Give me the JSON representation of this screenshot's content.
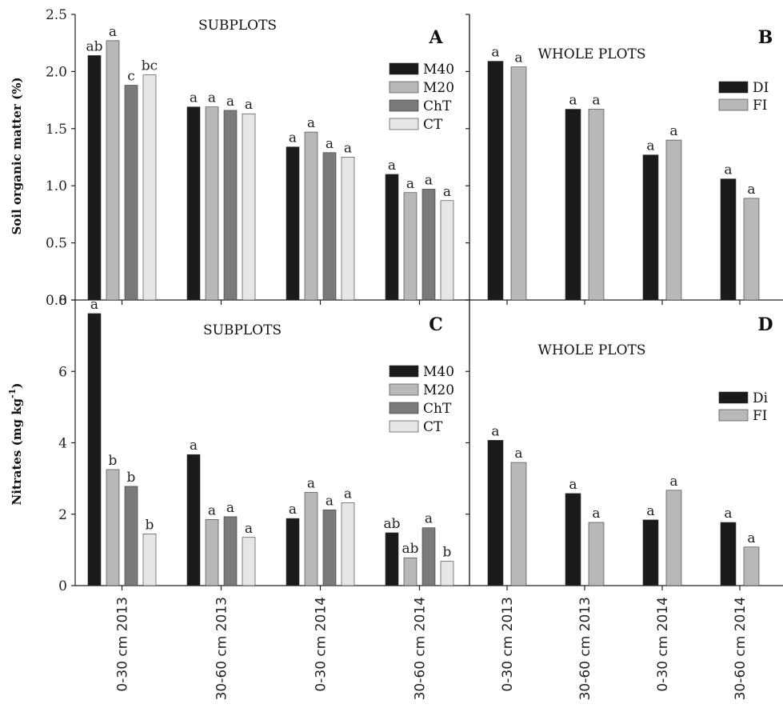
{
  "chart_data": [
    {
      "id": "A",
      "type": "bar",
      "panel_label": "A",
      "title": "SUBPLOTS",
      "ylabel": "Soil organic matter (%)",
      "ylim": [
        0,
        2.5
      ],
      "yticks": [
        "0.0",
        "0.5",
        "1.0",
        "1.5",
        "2.0",
        "2.5"
      ],
      "categories": [
        "0-30 cm 2013",
        "30-60  cm 2013",
        "0-30 cm 2014",
        "30-60 cm 2014"
      ],
      "legend_position": "right",
      "series": [
        {
          "name": "M40",
          "color": "#1a1a1a",
          "values": [
            2.14,
            1.69,
            1.34,
            1.1
          ],
          "labels": [
            "ab",
            "a",
            "a",
            "a"
          ]
        },
        {
          "name": "M20",
          "color": "#b8b8b8",
          "values": [
            2.27,
            1.69,
            1.47,
            0.94
          ],
          "labels": [
            "a",
            "a",
            "a",
            "a"
          ]
        },
        {
          "name": "ChT",
          "color": "#7a7a7a",
          "values": [
            1.88,
            1.66,
            1.29,
            0.97
          ],
          "labels": [
            "c",
            "a",
            "a",
            "a"
          ]
        },
        {
          "name": "CT",
          "color": "#e6e6e6",
          "values": [
            1.97,
            1.63,
            1.25,
            0.87
          ],
          "labels": [
            "bc",
            "a",
            "a",
            "a"
          ]
        }
      ]
    },
    {
      "id": "B",
      "type": "bar",
      "panel_label": "B",
      "title": "WHOLE PLOTS",
      "ylim": [
        0,
        2.5
      ],
      "categories": [
        "0-30 cm 2013",
        "30-60 cm 2013",
        "0-30 cm 2014",
        "30-60 cm 2014"
      ],
      "legend_position": "right",
      "series": [
        {
          "name": "DI",
          "color": "#1a1a1a",
          "values": [
            2.09,
            1.67,
            1.27,
            1.06
          ],
          "labels": [
            "a",
            "a",
            "a",
            "a"
          ]
        },
        {
          "name": "FI",
          "color": "#b8b8b8",
          "values": [
            2.04,
            1.67,
            1.4,
            0.89
          ],
          "labels": [
            "a",
            "a",
            "a",
            "a"
          ]
        }
      ]
    },
    {
      "id": "C",
      "type": "bar",
      "panel_label": "C",
      "title": "SUBPLOTS",
      "ylabel": "Nitrates (mg kg",
      "ylabel_superscript": "-1",
      "ylabel_close": ")",
      "ylim": [
        0,
        8
      ],
      "yticks": [
        "0",
        "2",
        "4",
        "6",
        "8"
      ],
      "categories": [
        "0-30 cm 2013",
        "30-60  cm 2013",
        "0-30 cm 2014",
        "30-60 cm 2014"
      ],
      "legend_position": "right",
      "series": [
        {
          "name": "M40",
          "color": "#1a1a1a",
          "values": [
            7.62,
            3.67,
            1.88,
            1.48
          ],
          "labels": [
            "a",
            "a",
            "a",
            "ab"
          ]
        },
        {
          "name": "M20",
          "color": "#b8b8b8",
          "values": [
            3.25,
            1.85,
            2.61,
            0.78
          ],
          "labels": [
            "b",
            "a",
            "a",
            "ab"
          ]
        },
        {
          "name": "ChT",
          "color": "#7a7a7a",
          "values": [
            2.78,
            1.93,
            2.12,
            1.62
          ],
          "labels": [
            "b",
            "a",
            "a",
            "a"
          ]
        },
        {
          "name": "CT",
          "color": "#e6e6e6",
          "values": [
            1.45,
            1.35,
            2.32,
            0.68
          ],
          "labels": [
            "b",
            "a",
            "a",
            "b"
          ]
        }
      ]
    },
    {
      "id": "D",
      "type": "bar",
      "panel_label": "D",
      "title": "WHOLE PLOTS",
      "ylim": [
        0,
        8
      ],
      "categories": [
        "0-30 cm 2013",
        "30-60 cm 2013",
        "0-30 cm 2014",
        "30-60 cm 2014"
      ],
      "legend_position": "right",
      "series": [
        {
          "name": "Di",
          "color": "#1a1a1a",
          "values": [
            4.07,
            2.58,
            1.84,
            1.77
          ],
          "labels": [
            "a",
            "a",
            "a",
            "a"
          ]
        },
        {
          "name": "FI",
          "color": "#b8b8b8",
          "values": [
            3.45,
            1.77,
            2.67,
            1.08
          ],
          "labels": [
            "a",
            "a",
            "a",
            "a"
          ]
        }
      ]
    }
  ]
}
